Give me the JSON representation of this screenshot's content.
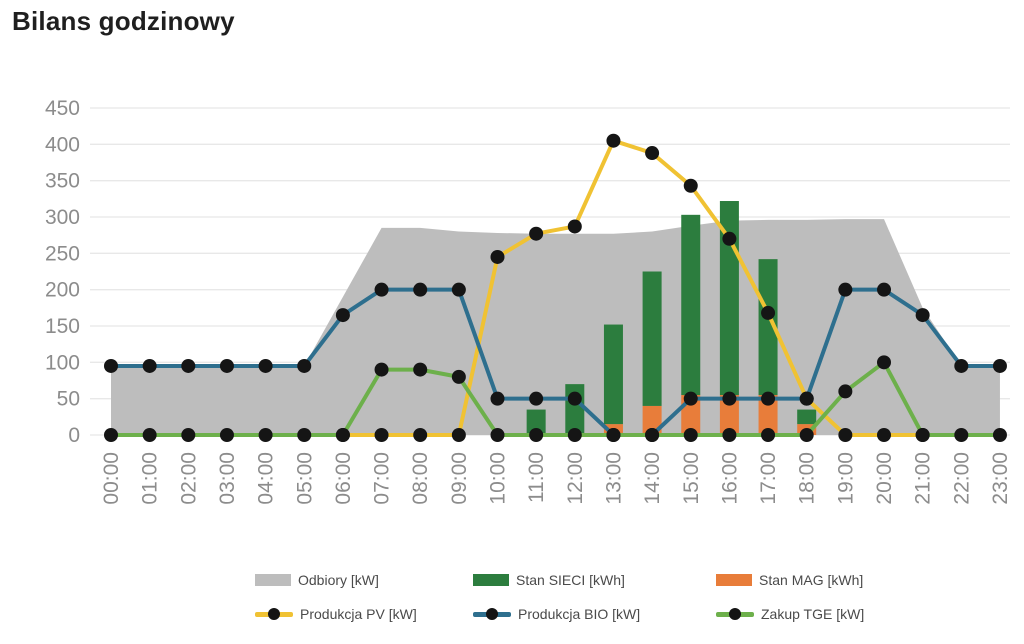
{
  "title": "Bilans godzinowy",
  "colors": {
    "odbiory": "#bdbdbd",
    "stan_sieci": "#2c7d3e",
    "stan_mag": "#e87d3a",
    "produkcja_pv": "#f0c233",
    "produkcja_bio": "#2e6f8e",
    "zakup_tge": "#6db04b",
    "marker": "#151515",
    "grid": "#e8e8e8",
    "axis_text": "#8c8c8c",
    "legend_text": "#4a4a4a",
    "title_text": "#1f1f1f"
  },
  "y_axis": {
    "ticks": [
      450,
      400,
      350,
      300,
      250,
      200,
      150,
      100,
      50,
      0
    ]
  },
  "x_axis": {
    "labels": [
      "00:00",
      "01:00",
      "02:00",
      "03:00",
      "04:00",
      "05:00",
      "06:00",
      "07:00",
      "08:00",
      "09:00",
      "10:00",
      "11:00",
      "12:00",
      "13:00",
      "14:00",
      "15:00",
      "16:00",
      "17:00",
      "18:00",
      "19:00",
      "20:00",
      "21:00",
      "22:00",
      "23:00"
    ]
  },
  "legend": {
    "rows": [
      [
        {
          "label": "Odbiory [kW]",
          "swatch": "rect",
          "color_key": "odbiory"
        },
        {
          "label": "Stan SIECI [kWh]",
          "swatch": "rect",
          "color_key": "stan_sieci"
        },
        {
          "label": "Stan MAG [kWh]",
          "swatch": "rect",
          "color_key": "stan_mag"
        }
      ],
      [
        {
          "label": "Produkcja PV [kW]",
          "swatch": "line",
          "color_key": "produkcja_pv"
        },
        {
          "label": "Produkcja BIO [kW]",
          "swatch": "line",
          "color_key": "produkcja_bio"
        },
        {
          "label": "Zakup TGE [kW]",
          "swatch": "line",
          "color_key": "zakup_tge"
        }
      ]
    ]
  },
  "chart_data": {
    "type": "combo",
    "title": "Bilans godzinowy",
    "x": [
      "00:00",
      "01:00",
      "02:00",
      "03:00",
      "04:00",
      "05:00",
      "06:00",
      "07:00",
      "08:00",
      "09:00",
      "10:00",
      "11:00",
      "12:00",
      "13:00",
      "14:00",
      "15:00",
      "16:00",
      "17:00",
      "18:00",
      "19:00",
      "20:00",
      "21:00",
      "22:00",
      "23:00"
    ],
    "ylim": [
      0,
      450
    ],
    "grid": "horizontal",
    "legend_position": "bottom",
    "marker": "black-circle",
    "series": [
      {
        "name": "Odbiory [kW]",
        "type": "area",
        "color_key": "odbiory",
        "values": [
          95,
          95,
          95,
          95,
          95,
          95,
          190,
          285,
          285,
          280,
          278,
          277,
          277,
          277,
          280,
          288,
          295,
          296,
          296,
          297,
          297,
          175,
          95,
          95
        ]
      },
      {
        "name": "Stan MAG [kWh]",
        "type": "bar",
        "stack": "bottom",
        "color_key": "stan_mag",
        "values": [
          0,
          0,
          0,
          0,
          0,
          0,
          0,
          0,
          0,
          0,
          0,
          0,
          0,
          15,
          40,
          55,
          55,
          55,
          15,
          0,
          0,
          0,
          0,
          0
        ]
      },
      {
        "name": "Stan SIECI [kWh]",
        "type": "bar",
        "stack": "top",
        "color_key": "stan_sieci",
        "values": [
          0,
          0,
          0,
          0,
          0,
          0,
          0,
          0,
          0,
          0,
          0,
          35,
          70,
          137,
          185,
          248,
          267,
          187,
          20,
          0,
          0,
          0,
          0,
          0
        ]
      },
      {
        "name": "Produkcja PV [kW]",
        "type": "line",
        "color_key": "produkcja_pv",
        "values": [
          null,
          null,
          null,
          null,
          null,
          null,
          0,
          0,
          0,
          0,
          245,
          277,
          287,
          405,
          388,
          343,
          270,
          168,
          50,
          0,
          0,
          0,
          null,
          null
        ]
      },
      {
        "name": "Produkcja BIO [kW]",
        "type": "line",
        "color_key": "produkcja_bio",
        "values": [
          95,
          95,
          95,
          95,
          95,
          95,
          165,
          200,
          200,
          200,
          50,
          50,
          50,
          0,
          0,
          50,
          50,
          50,
          50,
          200,
          200,
          165,
          95,
          95
        ]
      },
      {
        "name": "Zakup TGE [kW]",
        "type": "line",
        "color_key": "zakup_tge",
        "values": [
          0,
          0,
          0,
          0,
          0,
          0,
          0,
          90,
          90,
          80,
          0,
          0,
          0,
          0,
          0,
          0,
          0,
          0,
          0,
          60,
          100,
          0,
          0,
          0
        ]
      }
    ]
  }
}
